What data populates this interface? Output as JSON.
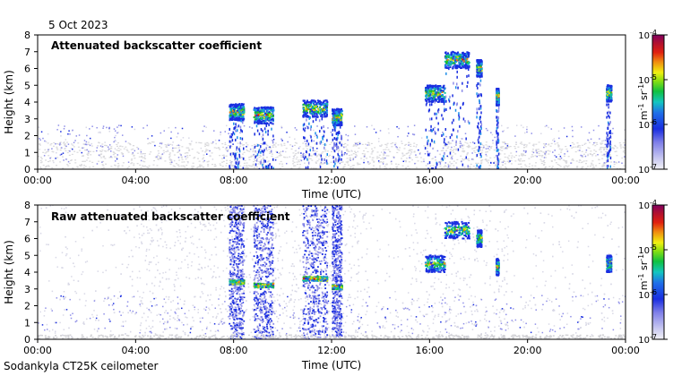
{
  "date_label": "5 Oct 2023",
  "footer": "Sodankyla CT25K ceilometer",
  "chart_data": [
    {
      "type": "heatmap",
      "title": "Attenuated backscatter coefficient",
      "xlabel": "Time (UTC)",
      "ylabel": "Height (km)",
      "xlim": [
        0,
        24
      ],
      "ylim": [
        0,
        8
      ],
      "x_ticks": [
        "00:00",
        "04:00",
        "08:00",
        "12:00",
        "16:00",
        "20:00",
        "00:00"
      ],
      "y_ticks": [
        "0",
        "1",
        "2",
        "3",
        "4",
        "5",
        "6",
        "7",
        "8"
      ],
      "colorbar": {
        "scale": "log",
        "range": [
          1e-07,
          0.0001
        ],
        "unit_label": "m-1 sr-1",
        "tick_labels": [
          {
            "base": "10",
            "exp": "-4"
          },
          {
            "base": "10",
            "exp": "-5"
          },
          {
            "base": "10",
            "exp": "-6"
          },
          {
            "base": "10",
            "exp": "-7"
          }
        ]
      },
      "features": [
        {
          "label": "cloud layer",
          "t_start": 7.8,
          "t_end": 8.4,
          "height_km": 3.4
        },
        {
          "label": "cloud layer",
          "t_start": 8.8,
          "t_end": 9.6,
          "height_km": 3.2
        },
        {
          "label": "cloud layer",
          "t_start": 10.8,
          "t_end": 11.8,
          "height_km": 3.6
        },
        {
          "label": "cloud layer",
          "t_start": 12.0,
          "t_end": 12.4,
          "height_km": 3.1
        },
        {
          "label": "rising cloud",
          "t_start": 15.8,
          "t_end": 16.6,
          "height_km": 4.5
        },
        {
          "label": "upper cloud",
          "t_start": 16.6,
          "t_end": 17.6,
          "height_km": 6.5
        },
        {
          "label": "cloud",
          "t_start": 17.9,
          "t_end": 18.1,
          "height_km": 6.0
        },
        {
          "label": "cloud",
          "t_start": 18.7,
          "t_end": 18.8,
          "height_km": 4.3
        },
        {
          "label": "cloud",
          "t_start": 23.2,
          "t_end": 23.4,
          "height_km": 4.5
        }
      ]
    },
    {
      "type": "heatmap",
      "title": "Raw attenuated backscatter coefficient",
      "xlabel": "Time (UTC)",
      "ylabel": "Height (km)",
      "xlim": [
        0,
        24
      ],
      "ylim": [
        0,
        8
      ],
      "x_ticks": [
        "00:00",
        "04:00",
        "08:00",
        "12:00",
        "16:00",
        "20:00",
        "00:00"
      ],
      "y_ticks": [
        "0",
        "1",
        "2",
        "3",
        "4",
        "5",
        "6",
        "7",
        "8"
      ],
      "colorbar": {
        "scale": "log",
        "range": [
          1e-07,
          0.0001
        ],
        "unit_label": "m-1 sr-1",
        "tick_labels": [
          {
            "base": "10",
            "exp": "-4"
          },
          {
            "base": "10",
            "exp": "-5"
          },
          {
            "base": "10",
            "exp": "-6"
          },
          {
            "base": "10",
            "exp": "-7"
          }
        ]
      },
      "noise_columns": [
        {
          "t_start": 7.8,
          "t_end": 8.4
        },
        {
          "t_start": 8.8,
          "t_end": 9.6
        },
        {
          "t_start": 10.8,
          "t_end": 11.8
        },
        {
          "t_start": 12.0,
          "t_end": 12.4
        }
      ]
    }
  ]
}
